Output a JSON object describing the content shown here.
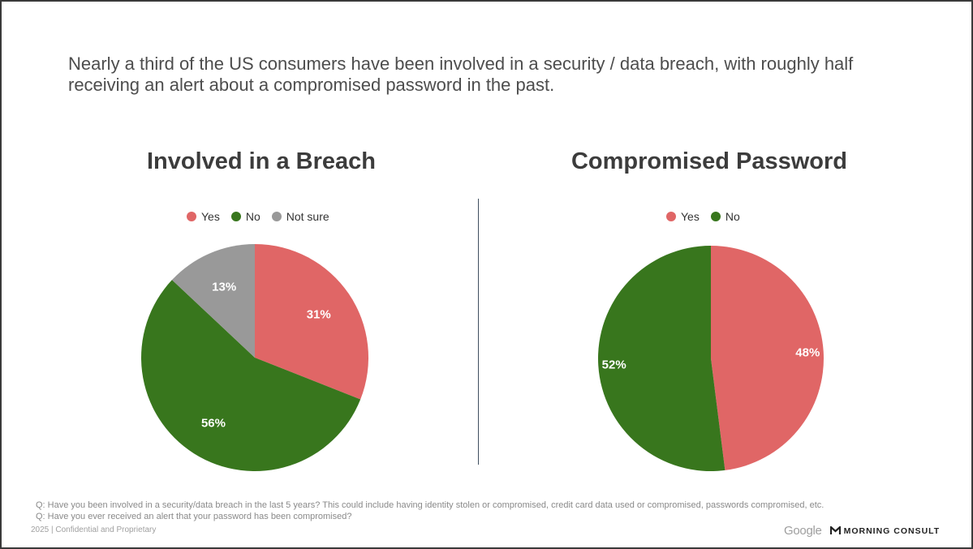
{
  "headline": "Nearly a third of the US consumers have been involved in a security / data breach, with roughly half receiving an alert about a compromised password in the past.",
  "colors": {
    "yes": "#e06666",
    "no": "#38761d",
    "not_sure": "#999999"
  },
  "chart_data": [
    {
      "type": "pie",
      "title": "Involved in a Breach",
      "categories": [
        "Yes",
        "No",
        "Not sure"
      ],
      "values": [
        31,
        56,
        13
      ],
      "labels": [
        "31%",
        "56%",
        "13%"
      ],
      "legend_position": "top"
    },
    {
      "type": "pie",
      "title": "Compromised Password",
      "categories": [
        "Yes",
        "No"
      ],
      "values": [
        48,
        52
      ],
      "labels": [
        "48%",
        "52%"
      ],
      "legend_position": "top"
    }
  ],
  "footnotes": [
    "Q: Have you been involved in a security/data breach in the last 5 years? This could include having identity stolen or compromised, credit card data used or compromised, passwords compromised, etc.",
    "Q: Have you ever received an alert that your password has been compromised?"
  ],
  "footer": {
    "confidential": "2025  |  Confidential and Proprietary",
    "google_logo": "Google",
    "partner_logo": "MORNING CONSULT"
  },
  "icons": {
    "partner_mark": "morning-consult-m-icon"
  }
}
